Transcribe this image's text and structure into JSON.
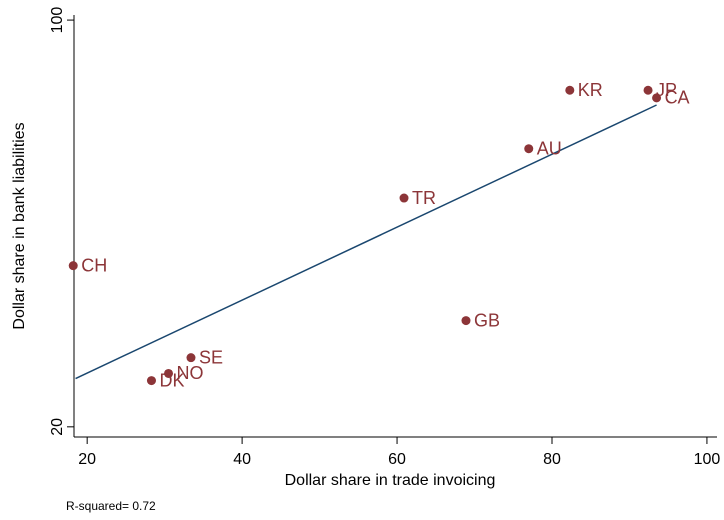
{
  "chart_data": {
    "type": "scatter",
    "xlabel": "Dollar share in trade invoicing",
    "ylabel": "Dollar share in bank liabilities",
    "annotation": "R-squared= 0.72",
    "labels": [
      "CH",
      "DK",
      "NO",
      "SE",
      "GB",
      "TR",
      "AU",
      "KR",
      "JP",
      "CA"
    ],
    "x": [
      18.2,
      28.3,
      30.5,
      33.4,
      68.9,
      60.9,
      77.0,
      82.3,
      92.4,
      93.5
    ],
    "y": [
      51.7,
      29.1,
      30.5,
      33.6,
      40.9,
      65.0,
      74.7,
      86.2,
      86.2,
      84.7
    ],
    "color": "#8c3538",
    "fit_line": {
      "x": [
        18.5,
        93.5
      ],
      "y": [
        29.5,
        83.3
      ],
      "color": "#1a476f"
    },
    "xlim": [
      18.3,
      101.3
    ],
    "xticks": [
      20,
      40,
      60,
      80,
      100
    ],
    "ylim": [
      18,
      101
    ],
    "yticks": [
      20,
      100
    ]
  }
}
